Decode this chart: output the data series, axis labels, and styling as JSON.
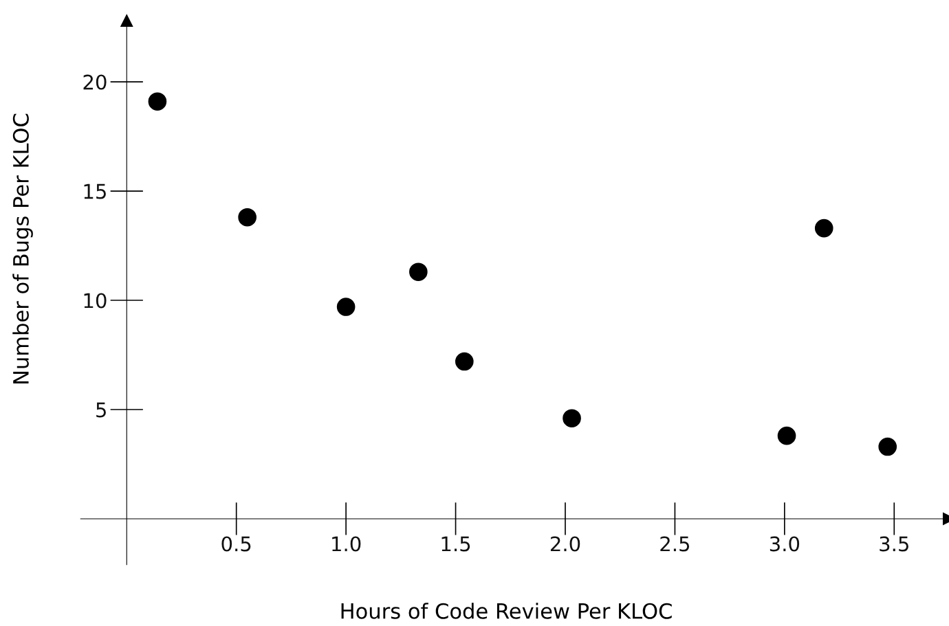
{
  "chart_data": {
    "type": "scatter",
    "xlabel": "Hours of Code Review Per KLOC",
    "ylabel": "Number of Bugs Per KLOC",
    "x": [
      0.14,
      0.55,
      1.0,
      1.33,
      1.54,
      2.03,
      3.01,
      3.18,
      3.47
    ],
    "series": [
      {
        "color": "#000000",
        "values": [
          19.1,
          13.8,
          9.7,
          11.3,
          7.2,
          4.6,
          3.8,
          13.3,
          3.3
        ]
      }
    ],
    "marker": "circle",
    "grid": false,
    "legend": false,
    "xlim": [
      -0.21,
      3.75
    ],
    "ylim": [
      -2.1,
      22.8
    ],
    "xticks": [
      0.5,
      {
        "value": 1,
        "label": "1.0"
      },
      1.5,
      {
        "value": 2,
        "label": "2.0"
      },
      2.5,
      {
        "value": 3,
        "label": "3.0"
      },
      3.5
    ],
    "yticks": [
      5,
      10,
      15,
      20
    ]
  }
}
